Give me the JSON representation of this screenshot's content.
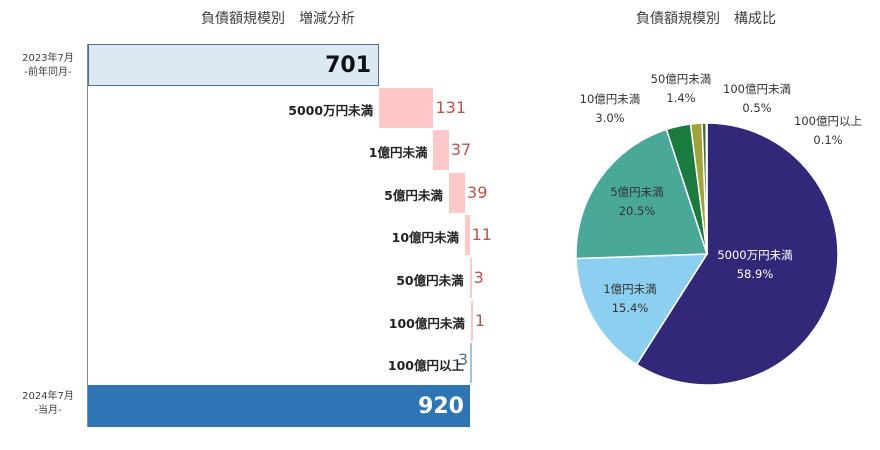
{
  "colors": {
    "base_start": "#dce9f5",
    "base_end": "#2e75b6",
    "increase": "#ffc7c7",
    "decrease": "#9dc3e6",
    "increase_text": "#c0504d",
    "decrease_text": "#5b6f86",
    "pie": [
      "#31287a",
      "#8dcff0",
      "#4aa898",
      "#1b7a3e",
      "#9ea33a",
      "#3f6e35",
      "#c8c8c8"
    ]
  },
  "chart_data": [
    {
      "type": "bar",
      "subtype": "waterfall",
      "title": "負債額規模別　増減分析",
      "start": {
        "label_line1": "2023年7月",
        "label_line2": "-前年同月-",
        "value": 701
      },
      "steps": [
        {
          "category": "5000万円未満",
          "value": 131,
          "value_text": "131"
        },
        {
          "category": "1億円未満",
          "value": 37,
          "value_text": "37"
        },
        {
          "category": "5億円未満",
          "value": 39,
          "value_text": "39"
        },
        {
          "category": "10億円未満",
          "value": 11,
          "value_text": "11"
        },
        {
          "category": "50億円未満",
          "value": 3,
          "value_text": "3"
        },
        {
          "category": "100億円未満",
          "value": 1,
          "value_text": "1"
        },
        {
          "category": "100億円以上",
          "value": -3,
          "value_text": "-3"
        }
      ],
      "end": {
        "label_line1": "2024年7月",
        "label_line2": "-当月-",
        "value": 920
      }
    },
    {
      "type": "pie",
      "title": "負債額規模別　構成比",
      "slices": [
        {
          "label": "5000万円未満",
          "percent_text": "58.9%",
          "value": 58.9
        },
        {
          "label": "1億円未満",
          "percent_text": "15.4%",
          "value": 15.4
        },
        {
          "label": "5億円未満",
          "percent_text": "20.5%",
          "value": 20.5
        },
        {
          "label": "10億円未満",
          "percent_text": "3.0%",
          "value": 3.0
        },
        {
          "label": "50億円未満",
          "percent_text": "1.4%",
          "value": 1.4
        },
        {
          "label": "100億円未満",
          "percent_text": "0.5%",
          "value": 0.5
        },
        {
          "label": "100億円以上",
          "percent_text": "0.1%",
          "value": 0.1
        }
      ]
    }
  ]
}
